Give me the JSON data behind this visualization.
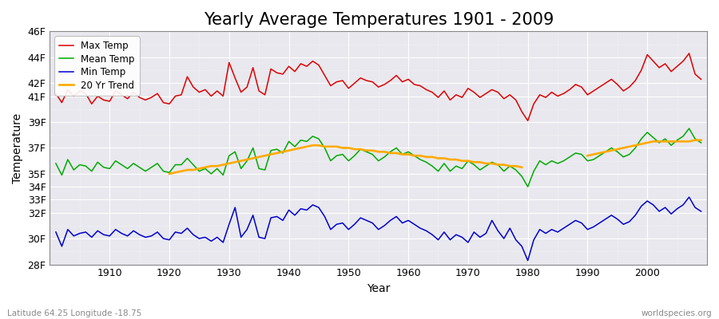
{
  "title": "Yearly Average Temperatures 1901 - 2009",
  "xlabel": "Year",
  "ylabel": "Temperature",
  "footnote_left": "Latitude 64.25 Longitude -18.75",
  "footnote_right": "worldspecies.org",
  "legend_labels": [
    "Max Temp",
    "Mean Temp",
    "Min Temp",
    "20 Yr Trend"
  ],
  "legend_colors": [
    "#dd0000",
    "#00aa00",
    "#0000cc",
    "#ffaa00"
  ],
  "bg_color": "#ffffff",
  "plot_bg_color": "#e8e8ee",
  "grid_color": "#ffffff",
  "years": [
    1901,
    1902,
    1903,
    1904,
    1905,
    1906,
    1907,
    1908,
    1909,
    1910,
    1911,
    1912,
    1913,
    1914,
    1915,
    1916,
    1917,
    1918,
    1919,
    1920,
    1921,
    1922,
    1923,
    1924,
    1925,
    1926,
    1927,
    1928,
    1929,
    1930,
    1931,
    1932,
    1933,
    1934,
    1935,
    1936,
    1937,
    1938,
    1939,
    1940,
    1941,
    1942,
    1943,
    1944,
    1945,
    1946,
    1947,
    1948,
    1949,
    1950,
    1951,
    1952,
    1953,
    1954,
    1955,
    1956,
    1957,
    1958,
    1959,
    1960,
    1961,
    1962,
    1963,
    1964,
    1965,
    1966,
    1967,
    1968,
    1969,
    1970,
    1971,
    1972,
    1973,
    1974,
    1975,
    1976,
    1977,
    1978,
    1979,
    1980,
    1981,
    1982,
    1983,
    1984,
    1985,
    1986,
    1987,
    1988,
    1989,
    1990,
    1991,
    1992,
    1993,
    1994,
    1995,
    1996,
    1997,
    1998,
    1999,
    2000,
    2001,
    2002,
    2003,
    2004,
    2005,
    2006,
    2007,
    2008,
    2009
  ],
  "max_temp": [
    41.2,
    40.5,
    41.5,
    41.0,
    41.4,
    41.2,
    40.4,
    41.0,
    40.7,
    40.6,
    41.4,
    41.1,
    40.8,
    41.3,
    40.9,
    40.7,
    40.9,
    41.2,
    40.5,
    40.4,
    41.0,
    41.1,
    42.5,
    41.7,
    41.3,
    41.5,
    41.0,
    41.4,
    41.0,
    43.6,
    42.4,
    41.3,
    41.7,
    43.2,
    41.4,
    41.1,
    43.1,
    42.8,
    42.7,
    43.3,
    42.9,
    43.5,
    43.3,
    43.7,
    43.4,
    42.6,
    41.8,
    42.1,
    42.2,
    41.6,
    42.0,
    42.4,
    42.2,
    42.1,
    41.7,
    41.9,
    42.2,
    42.6,
    42.1,
    42.3,
    41.9,
    41.8,
    41.5,
    41.3,
    40.9,
    41.4,
    40.7,
    41.1,
    40.9,
    41.6,
    41.3,
    40.9,
    41.2,
    41.5,
    41.3,
    40.8,
    41.1,
    40.7,
    39.8,
    39.1,
    40.4,
    41.1,
    40.9,
    41.3,
    41.0,
    41.2,
    41.5,
    41.9,
    41.7,
    41.1,
    41.4,
    41.7,
    42.0,
    42.3,
    41.9,
    41.4,
    41.7,
    42.2,
    43.0,
    44.2,
    43.7,
    43.2,
    43.5,
    42.9,
    43.3,
    43.7,
    44.3,
    42.7,
    42.3
  ],
  "mean_temp": [
    35.8,
    34.9,
    36.1,
    35.3,
    35.7,
    35.6,
    35.2,
    35.9,
    35.5,
    35.4,
    36.0,
    35.7,
    35.4,
    35.8,
    35.5,
    35.2,
    35.5,
    35.8,
    35.2,
    35.1,
    35.7,
    35.7,
    36.2,
    35.7,
    35.2,
    35.4,
    35.0,
    35.4,
    34.9,
    36.4,
    36.7,
    35.4,
    36.0,
    37.0,
    35.4,
    35.3,
    36.8,
    36.9,
    36.6,
    37.5,
    37.1,
    37.6,
    37.5,
    37.9,
    37.7,
    37.0,
    36.0,
    36.4,
    36.5,
    36.0,
    36.4,
    36.9,
    36.7,
    36.5,
    36.0,
    36.3,
    36.7,
    37.0,
    36.5,
    36.7,
    36.4,
    36.1,
    35.9,
    35.6,
    35.2,
    35.8,
    35.2,
    35.6,
    35.4,
    36.0,
    35.7,
    35.3,
    35.6,
    35.9,
    35.7,
    35.2,
    35.6,
    35.3,
    34.8,
    34.0,
    35.2,
    36.0,
    35.7,
    36.0,
    35.8,
    36.0,
    36.3,
    36.6,
    36.5,
    36.0,
    36.1,
    36.4,
    36.7,
    37.0,
    36.7,
    36.3,
    36.5,
    37.0,
    37.7,
    38.2,
    37.8,
    37.4,
    37.7,
    37.2,
    37.6,
    37.9,
    38.5,
    37.7,
    37.4
  ],
  "min_temp": [
    30.5,
    29.4,
    30.7,
    30.2,
    30.4,
    30.5,
    30.1,
    30.6,
    30.3,
    30.2,
    30.7,
    30.4,
    30.2,
    30.6,
    30.3,
    30.1,
    30.2,
    30.5,
    30.0,
    29.9,
    30.5,
    30.4,
    30.8,
    30.3,
    30.0,
    30.1,
    29.8,
    30.1,
    29.7,
    31.1,
    32.4,
    30.1,
    30.7,
    31.8,
    30.1,
    30.0,
    31.6,
    31.7,
    31.4,
    32.2,
    31.8,
    32.3,
    32.2,
    32.6,
    32.4,
    31.7,
    30.7,
    31.1,
    31.2,
    30.7,
    31.1,
    31.6,
    31.4,
    31.2,
    30.7,
    31.0,
    31.4,
    31.7,
    31.2,
    31.4,
    31.1,
    30.8,
    30.6,
    30.3,
    29.9,
    30.5,
    29.9,
    30.3,
    30.1,
    29.7,
    30.5,
    30.1,
    30.4,
    31.4,
    30.6,
    30.0,
    30.8,
    29.9,
    29.4,
    28.3,
    29.9,
    30.7,
    30.4,
    30.7,
    30.5,
    30.8,
    31.1,
    31.4,
    31.2,
    30.7,
    30.9,
    31.2,
    31.5,
    31.8,
    31.5,
    31.1,
    31.3,
    31.8,
    32.5,
    32.9,
    32.6,
    32.1,
    32.4,
    31.9,
    32.3,
    32.6,
    33.2,
    32.4,
    32.1
  ],
  "trend1_years": [
    1920,
    1921,
    1922,
    1923,
    1924,
    1925,
    1926,
    1927,
    1928,
    1929,
    1930,
    1931,
    1932,
    1933,
    1934,
    1935,
    1936,
    1937,
    1938,
    1939,
    1940,
    1941,
    1942,
    1943,
    1944,
    1945,
    1946,
    1947,
    1948,
    1949,
    1950,
    1951,
    1952,
    1953,
    1954,
    1955,
    1956,
    1957,
    1958,
    1959,
    1960,
    1961,
    1962,
    1963,
    1964,
    1965,
    1966,
    1967,
    1968,
    1969,
    1970,
    1971,
    1972,
    1973,
    1974,
    1975,
    1976,
    1977,
    1978,
    1979
  ],
  "trend1_values": [
    35.0,
    35.1,
    35.2,
    35.3,
    35.3,
    35.4,
    35.5,
    35.6,
    35.6,
    35.7,
    35.8,
    35.9,
    36.0,
    36.1,
    36.2,
    36.3,
    36.4,
    36.5,
    36.6,
    36.7,
    36.8,
    36.9,
    37.0,
    37.1,
    37.2,
    37.2,
    37.1,
    37.1,
    37.1,
    37.0,
    37.0,
    36.9,
    36.9,
    36.8,
    36.8,
    36.7,
    36.7,
    36.6,
    36.6,
    36.5,
    36.5,
    36.4,
    36.4,
    36.3,
    36.3,
    36.2,
    36.2,
    36.1,
    36.1,
    36.0,
    36.0,
    35.9,
    35.9,
    35.8,
    35.8,
    35.7,
    35.7,
    35.6,
    35.6,
    35.5
  ],
  "trend2_years": [
    1990,
    1991,
    1992,
    1993,
    1994,
    1995,
    1996,
    1997,
    1998,
    1999,
    2000,
    2001,
    2002,
    2003,
    2004,
    2005,
    2006,
    2007,
    2008,
    2009
  ],
  "trend2_values": [
    36.4,
    36.5,
    36.6,
    36.7,
    36.8,
    36.9,
    37.0,
    37.1,
    37.2,
    37.3,
    37.4,
    37.5,
    37.5,
    37.5,
    37.5,
    37.5,
    37.5,
    37.5,
    37.6,
    37.6
  ],
  "ylim": [
    28,
    46
  ],
  "ytick_positions": [
    28,
    30,
    32,
    33,
    34,
    35,
    37,
    39,
    41,
    42,
    44,
    46
  ],
  "ytick_labels": [
    "28F",
    "30F",
    "32F",
    "33F",
    "34F",
    "35F",
    "37F",
    "39F",
    "41F",
    "42F",
    "44F",
    "46F"
  ],
  "xticks": [
    1910,
    1920,
    1930,
    1940,
    1950,
    1960,
    1970,
    1980,
    1990,
    2000
  ],
  "xlim": [
    1900,
    2010
  ],
  "title_fontsize": 15,
  "axis_fontsize": 10,
  "tick_fontsize": 9,
  "line_width": 1.1
}
